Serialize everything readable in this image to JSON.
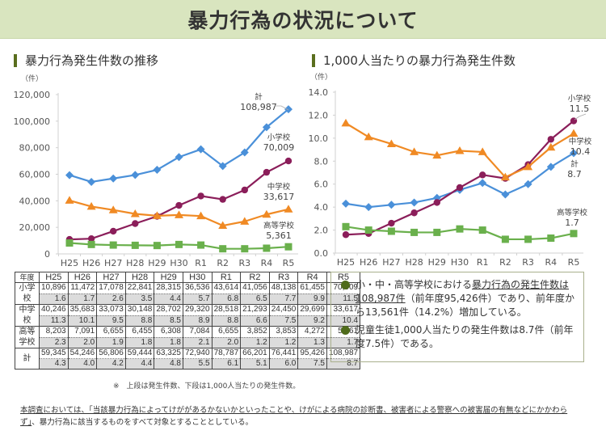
{
  "header": {
    "title": "暴力行為の状況について"
  },
  "sections": {
    "left_title": "暴力行為発生件数の推移",
    "right_title": "1,000人当たりの暴力行為発生件数"
  },
  "colors": {
    "total": "#4a90d9",
    "elementary": "#8b1e5a",
    "junior_high": "#f08a24",
    "high_school": "#6ab04c",
    "title_bg": "#d9e5bf",
    "accent": "#5a6e1e"
  },
  "chart_data": [
    {
      "type": "line",
      "title": "暴力行為発生件数の推移",
      "ylabel": "（件）",
      "xlabel": "",
      "categories": [
        "H25",
        "H26",
        "H27",
        "H28",
        "H29",
        "H30",
        "R1",
        "R2",
        "R3",
        "R4",
        "R5"
      ],
      "ylim": [
        0,
        120000
      ],
      "yticks": [
        0,
        20000,
        40000,
        60000,
        80000,
        100000,
        120000
      ],
      "ytick_labels": [
        "0",
        "20,000",
        "40,000",
        "60,000",
        "80,000",
        "100,000",
        "120,000"
      ],
      "grid": false,
      "series": [
        {
          "key": "total",
          "name": "計",
          "marker": "diamond",
          "end_label": "108,987",
          "values": [
            59345,
            54246,
            56806,
            59444,
            63325,
            72940,
            78787,
            66201,
            76441,
            95426,
            108987
          ]
        },
        {
          "key": "elementary",
          "name": "小学校",
          "marker": "circle",
          "end_label": "70,009",
          "values": [
            10896,
            11472,
            17078,
            22841,
            28315,
            36536,
            43614,
            41056,
            48138,
            61455,
            70009
          ]
        },
        {
          "key": "junior_high",
          "name": "中学校",
          "marker": "triangle",
          "end_label": "33,617",
          "values": [
            40246,
            35683,
            33073,
            30148,
            28702,
            29320,
            28518,
            21293,
            24450,
            29699,
            33617
          ]
        },
        {
          "key": "high_school",
          "name": "高等学校",
          "marker": "square",
          "end_label": "5,361",
          "values": [
            8203,
            7091,
            6655,
            6455,
            6308,
            7084,
            6655,
            3852,
            3853,
            4272,
            5361
          ]
        }
      ]
    },
    {
      "type": "line",
      "title": "1,000人当たりの暴力行為発生件数",
      "ylabel": "（件）",
      "xlabel": "",
      "categories": [
        "H25",
        "H26",
        "H27",
        "H28",
        "H29",
        "H30",
        "R1",
        "R2",
        "R3",
        "R4",
        "R5"
      ],
      "ylim": [
        0,
        14
      ],
      "yticks": [
        0,
        2,
        4,
        6,
        8,
        10,
        12,
        14
      ],
      "ytick_labels": [
        "0.0",
        "2.0",
        "4.0",
        "6.0",
        "8.0",
        "10.0",
        "12.0",
        "14.0"
      ],
      "grid": false,
      "series": [
        {
          "key": "total",
          "name": "計",
          "marker": "diamond",
          "end_label": "8.7",
          "values": [
            4.3,
            4.0,
            4.2,
            4.4,
            4.8,
            5.5,
            6.1,
            5.1,
            6.0,
            7.5,
            8.7
          ]
        },
        {
          "key": "elementary",
          "name": "小学校",
          "marker": "circle",
          "end_label": "11.5",
          "values": [
            1.6,
            1.7,
            2.6,
            3.5,
            4.4,
            5.7,
            6.8,
            6.5,
            7.7,
            9.9,
            11.5
          ]
        },
        {
          "key": "junior_high",
          "name": "中学校",
          "marker": "triangle",
          "end_label": "10.4",
          "values": [
            11.3,
            10.1,
            9.5,
            8.8,
            8.5,
            8.9,
            8.8,
            6.6,
            7.5,
            9.2,
            10.4
          ]
        },
        {
          "key": "high_school",
          "name": "高等学校",
          "marker": "square",
          "end_label": "1.7",
          "values": [
            2.3,
            2.0,
            1.9,
            1.8,
            1.8,
            2.1,
            2.0,
            1.2,
            1.2,
            1.3,
            1.7
          ]
        }
      ]
    }
  ],
  "table": {
    "corner": "年度",
    "columns": [
      "H25",
      "H26",
      "H27",
      "H28",
      "H29",
      "H30",
      "R1",
      "R2",
      "R3",
      "R4",
      "R5"
    ],
    "rows": [
      {
        "label": "小学校",
        "counts": [
          "10,896",
          "11,472",
          "17,078",
          "22,841",
          "28,315",
          "36,536",
          "43,614",
          "41,056",
          "48,138",
          "61,455",
          "70,009"
        ],
        "rates": [
          "1.6",
          "1.7",
          "2.6",
          "3.5",
          "4.4",
          "5.7",
          "6.8",
          "6.5",
          "7.7",
          "9.9",
          "11.5"
        ]
      },
      {
        "label": "中学校",
        "counts": [
          "40,246",
          "35,683",
          "33,073",
          "30,148",
          "28,702",
          "29,320",
          "28,518",
          "21,293",
          "24,450",
          "29,699",
          "33,617"
        ],
        "rates": [
          "11.3",
          "10.1",
          "9.5",
          "8.8",
          "8.5",
          "8.9",
          "8.8",
          "6.6",
          "7.5",
          "9.2",
          "10.4"
        ]
      },
      {
        "label": "高等学校",
        "counts": [
          "8,203",
          "7,091",
          "6,655",
          "6,455",
          "6,308",
          "7,084",
          "6,655",
          "3,852",
          "3,853",
          "4,272",
          "5,361"
        ],
        "rates": [
          "2.3",
          "2.0",
          "1.9",
          "1.8",
          "1.8",
          "2.1",
          "2.0",
          "1.2",
          "1.2",
          "1.3",
          "1.7"
        ]
      },
      {
        "label": "計",
        "counts": [
          "59,345",
          "54,246",
          "56,806",
          "59,444",
          "63,325",
          "72,940",
          "78,787",
          "66,201",
          "76,441",
          "95,426",
          "108,987"
        ],
        "rates": [
          "4.3",
          "4.0",
          "4.2",
          "4.4",
          "4.8",
          "5.5",
          "6.1",
          "5.1",
          "6.0",
          "7.5",
          "8.7"
        ]
      }
    ],
    "note": "※　上段は発生件数、下段は1,000人当たりの発生件数。"
  },
  "summary": {
    "item1_pre": "小・中・高等学校における",
    "item1_underlined": "暴力行為の発生件数は108,987件",
    "item1_post": "（前年度95,426件）であり、前年度から13,561件（14.2%）増加している。",
    "item2": "児童生徒1,000人当たりの発生件数は8.7件（前年度7.5件）である。"
  },
  "footnote": {
    "underlined_part": "本調査においては、「当該暴力行為によってけががあるかないかといったことや、けがによる病院の診断書、被害者による警察への被害届の有無などにかかわらず」",
    "rest": "、暴力行為に該当するものをすべて対象とすることとしている。"
  }
}
